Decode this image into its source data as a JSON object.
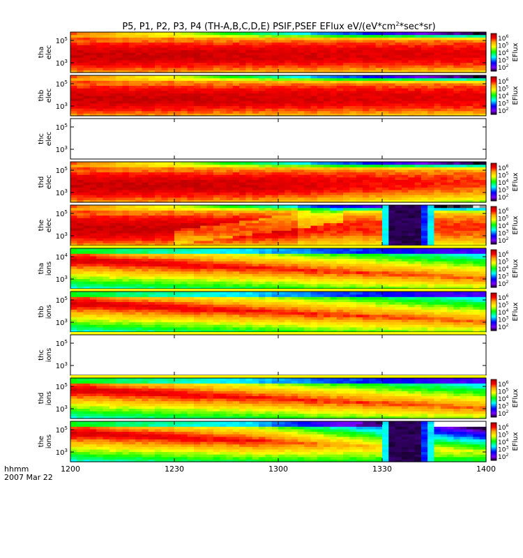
{
  "chart_data": {
    "type": "heatmap",
    "title": "P5, P1, P2, P3, P4 (TH-A,B,C,D,E) PSIF,PSEF EFlux eV/(eV*cm",
    "title_sup": "2",
    "title_tail": "*sec*sr)",
    "x_axis": {
      "ticks": [
        "1200",
        "1230",
        "1300",
        "1330",
        "1400"
      ],
      "label_top": "hhmm",
      "label_bottom": "2007 Mar 22",
      "range": [
        "1200",
        "1400"
      ]
    },
    "y_scale": "log",
    "colorbar": {
      "label": "EFlux",
      "scale": "log",
      "tick_labels": [
        {
          "base": "10",
          "exp": "6"
        },
        {
          "base": "10",
          "exp": "5"
        },
        {
          "base": "10",
          "exp": "4"
        },
        {
          "base": "10",
          "exp": "3"
        },
        {
          "base": "10",
          "exp": "2"
        }
      ],
      "colors": [
        "#ff0000",
        "#ff7f00",
        "#ffff00",
        "#00ff00",
        "#00ffff",
        "#0000ff",
        "#7f00ff",
        "#000000"
      ]
    },
    "panels": [
      {
        "probe": "tha",
        "species": "elec",
        "has_data": true,
        "ytick_labels": [
          {
            "base": "10",
            "exp": "5"
          },
          {
            "base": "10",
            "exp": "3"
          }
        ],
        "pattern": "elec",
        "dropout": null,
        "bands": false
      },
      {
        "probe": "thb",
        "species": "elec",
        "has_data": true,
        "ytick_labels": [
          {
            "base": "10",
            "exp": "5"
          },
          {
            "base": "10",
            "exp": "3"
          }
        ],
        "pattern": "elec",
        "dropout": null,
        "bands": false
      },
      {
        "probe": "thc",
        "species": "elec",
        "has_data": false,
        "ytick_labels": [
          {
            "base": "10",
            "exp": "5"
          },
          {
            "base": "10",
            "exp": "3"
          }
        ],
        "pattern": "none",
        "dropout": null,
        "bands": false
      },
      {
        "probe": "thd",
        "species": "elec",
        "has_data": true,
        "ytick_labels": [
          {
            "base": "10",
            "exp": "5"
          },
          {
            "base": "10",
            "exp": "3"
          }
        ],
        "pattern": "elec_d",
        "dropout": null,
        "bands": false
      },
      {
        "probe": "the",
        "species": "elec",
        "has_data": true,
        "ytick_labels": [
          {
            "base": "10",
            "exp": "5"
          },
          {
            "base": "10",
            "exp": "3"
          }
        ],
        "pattern": "elec_e",
        "dropout": [
          "1330",
          "1345"
        ],
        "bands": true
      },
      {
        "probe": "tha",
        "species": "ions",
        "has_data": true,
        "ytick_labels": [
          {
            "base": "10",
            "exp": "4"
          },
          {
            "base": "10",
            "exp": "3"
          }
        ],
        "pattern": "ions",
        "dropout": null,
        "bands": true
      },
      {
        "probe": "thb",
        "species": "ions",
        "has_data": true,
        "ytick_labels": [
          {
            "base": "10",
            "exp": "5"
          },
          {
            "base": "10",
            "exp": "3"
          }
        ],
        "pattern": "ions",
        "dropout": null,
        "bands": true
      },
      {
        "probe": "thc",
        "species": "ions",
        "has_data": false,
        "ytick_labels": [
          {
            "base": "10",
            "exp": "5"
          },
          {
            "base": "10",
            "exp": "3"
          }
        ],
        "pattern": "none",
        "dropout": null,
        "bands": true
      },
      {
        "probe": "thd",
        "species": "ions",
        "has_data": true,
        "ytick_labels": [
          {
            "base": "10",
            "exp": "5"
          },
          {
            "base": "10",
            "exp": "3"
          }
        ],
        "pattern": "ions",
        "dropout": null,
        "bands": false
      },
      {
        "probe": "the",
        "species": "ions",
        "has_data": true,
        "ytick_labels": [
          {
            "base": "10",
            "exp": "5"
          },
          {
            "base": "10",
            "exp": "3"
          }
        ],
        "pattern": "ions_e",
        "dropout": [
          "1330",
          "1345"
        ],
        "bands": false
      }
    ]
  }
}
